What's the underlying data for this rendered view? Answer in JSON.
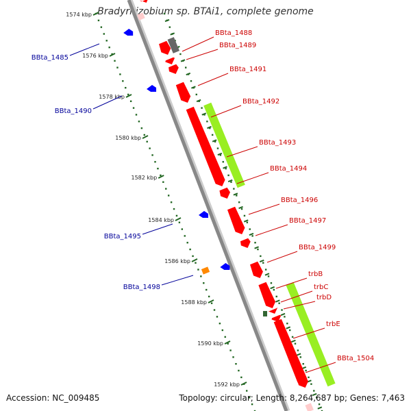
{
  "title": "Bradyrhizobium sp. BTAi1, complete genome",
  "footer": {
    "accession": "Accession: NC_009485",
    "topology": "Topology: circular; Length: 8,264,687 bp; Genes: 7,463"
  },
  "colors": {
    "backbone": "#888888",
    "forward_gene": "#ff0000",
    "reverse_gene": "#0000ff",
    "operon_bar": "#99ee22",
    "ruler_dots": "#226622",
    "label_forward": "#cc0000",
    "label_reverse": "#000099",
    "pseudo_gene": "#666666",
    "other_gene": "#ff8800"
  },
  "ruler_ticks": [
    "1574 kbp",
    "1576 kbp",
    "1578 kbp",
    "1580 kbp",
    "1582 kbp",
    "1584 kbp",
    "1586 kbp",
    "1588 kbp",
    "1590 kbp",
    "1592 kbp"
  ],
  "forward_labels": [
    "BBta_1488",
    "BBta_1489",
    "BBta_1491",
    "BBta_1492",
    "BBta_1493",
    "BBta_1494",
    "BBta_1496",
    "BBta_1497",
    "BBta_1499",
    "trbB",
    "trbC",
    "trbD",
    "trbE",
    "BBta_1504"
  ],
  "reverse_labels": [
    "BBta_1485",
    "BBta_1490",
    "BBta_1495",
    "BBta_1498"
  ]
}
